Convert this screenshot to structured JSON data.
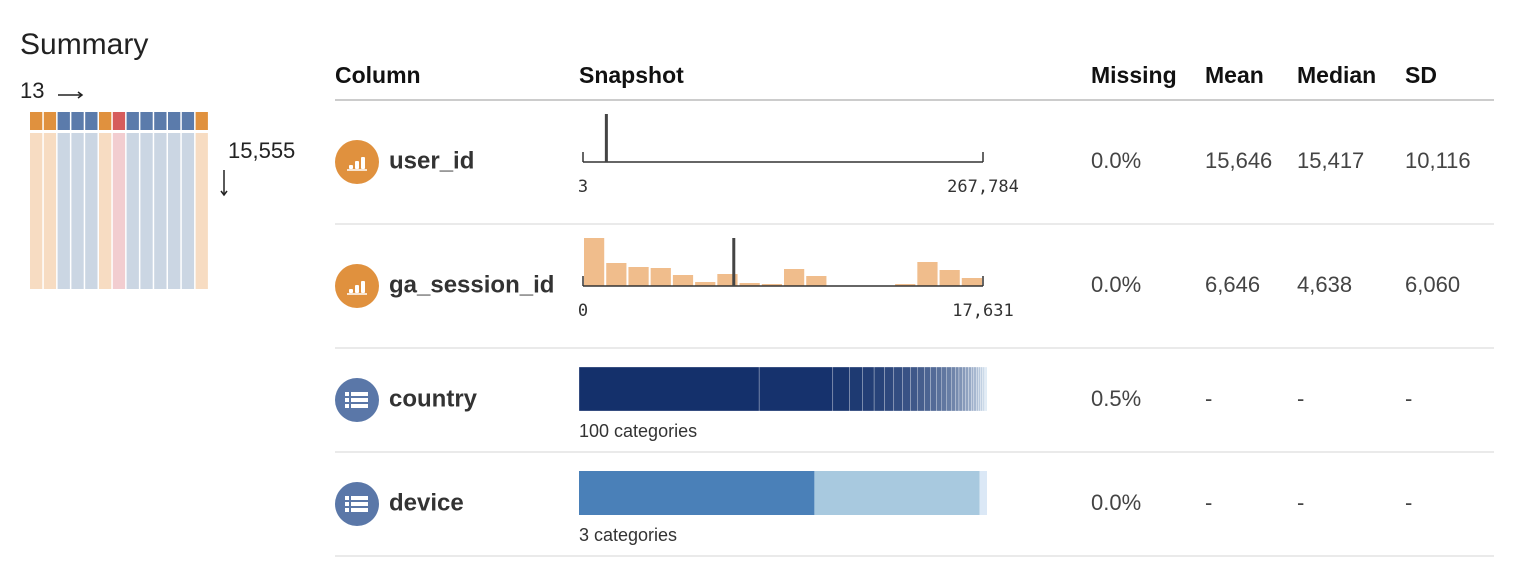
{
  "summary": {
    "title": "Summary",
    "column_count": "13",
    "row_count": "15,555",
    "column_colors": [
      "#e0913e",
      "#e0913e",
      "#5b7bab",
      "#5b7bab",
      "#5b7bab",
      "#e0913e",
      "#d65c5c",
      "#5b7bab",
      "#5b7bab",
      "#5b7bab",
      "#5b7bab",
      "#5b7bab",
      "#e0913e"
    ],
    "body_colors": [
      "#f7dcc2",
      "#f7dcc2",
      "#cbd6e3",
      "#cbd6e3",
      "#cbd6e3",
      "#f7dcc2",
      "#f2cdd0",
      "#cbd6e3",
      "#cbd6e3",
      "#cbd6e3",
      "#cbd6e3",
      "#cbd6e3",
      "#f7dcc2"
    ]
  },
  "table": {
    "headers": [
      "Column",
      "Snapshot",
      "Missing",
      "Mean",
      "Median",
      "SD"
    ],
    "rows": [
      {
        "name": "user_id",
        "kind": "numeric",
        "snapshot": {
          "xlim": [
            3,
            267784
          ],
          "xticks": [
            3,
            {
              "value": 267784,
              "label": "267,784"
            }
          ],
          "ylim": [
            0,
            48
          ],
          "counts": [],
          "bar_color": "#f0bd8c",
          "mean_marker": 15646
        },
        "missing": "0.0%",
        "mean": "15,646",
        "median": "15,417",
        "sd": "10,116"
      },
      {
        "name": "ga_session_id",
        "kind": "numeric",
        "snapshot": {
          "xlim": [
            0,
            17631
          ],
          "xticks": [
            0,
            {
              "value": 17631,
              "label": "17,631"
            }
          ],
          "ylim": [
            0,
            48
          ],
          "counts": [
            48,
            23,
            19,
            18,
            11,
            4,
            12,
            3,
            2,
            17,
            10,
            0,
            0,
            0,
            2,
            24,
            16,
            8
          ],
          "bar_color": "#f0bd8c",
          "mean_marker": 6646
        },
        "missing": "0.0%",
        "mean": "6,646",
        "median": "4,638",
        "sd": "6,060"
      },
      {
        "name": "country",
        "kind": "categorical",
        "snapshot": {
          "shares": [
            43.7,
            17.9,
            4.0,
            3.2,
            2.8,
            2.5,
            2.3,
            2.1,
            1.9,
            1.8,
            1.6,
            1.5,
            1.4,
            1.3,
            1.2,
            1.1,
            1.0,
            0.9,
            0.8,
            0.8,
            0.7,
            0.7,
            0.6,
            0.6,
            0.5,
            0.5,
            0.5,
            0.4,
            0.4,
            0.3
          ],
          "color_start": "#14306b",
          "color_end": "#dbe8f4",
          "label": "100 categories"
        },
        "missing": "0.5%",
        "mean": "-",
        "median": "-",
        "sd": "-"
      },
      {
        "name": "device",
        "kind": "categorical",
        "snapshot": {
          "shares": [
            57.7,
            40.5,
            1.8
          ],
          "colors": [
            "#4a80b8",
            "#a8c9df",
            "#dbe8f6"
          ],
          "label": "3 categories"
        },
        "missing": "0.0%",
        "mean": "-",
        "median": "-",
        "sd": "-"
      }
    ]
  }
}
